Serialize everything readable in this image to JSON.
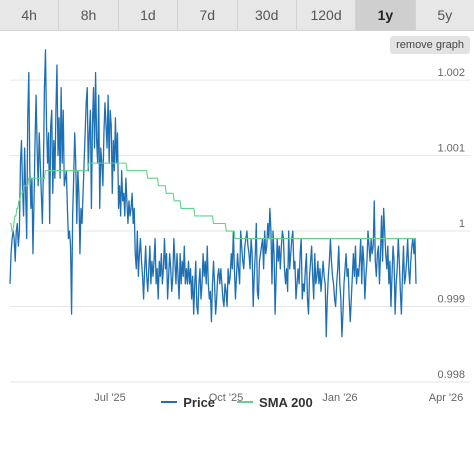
{
  "toolbar": {
    "tabs": [
      "4h",
      "8h",
      "1d",
      "7d",
      "30d",
      "120d",
      "1y",
      "5y"
    ],
    "active_tab": "1y",
    "remove_label": "remove graph"
  },
  "colors": {
    "price": "#1f6fb3",
    "sma": "#5fd38a",
    "grid": "#e6e6e6",
    "axis_text": "#666666"
  },
  "chart_data": {
    "type": "line",
    "xlabel": "",
    "ylabel": "",
    "x_ticks": [
      "Jul '25",
      "Oct '25",
      "Jan '26",
      "Apr '26"
    ],
    "y_ticks": [
      "0.998",
      "0.999",
      "1",
      "1.001",
      "1.002"
    ],
    "ylim": [
      0.998,
      1.0022
    ],
    "legend_position": "bottom",
    "grid": true,
    "series": [
      {
        "name": "Price",
        "values": [
          0.9993,
          0.9997,
          0.9999,
          1.0,
          0.9999,
          0.9996,
          1.0,
          1.0001,
          0.9998,
          1.0,
          1.0009,
          1.0012,
          1.0006,
          1.0002,
          1.0011,
          1.0005,
          0.9999,
          1.0015,
          1.0021,
          1.0008,
          1.0003,
          1.0007,
          0.9997,
          1.0004,
          1.0012,
          1.0018,
          1.0011,
          1.0006,
          1.0013,
          1.0009,
          1.0005,
          1.0001,
          1.0008,
          1.0019,
          1.0024,
          1.0014,
          1.0009,
          1.0013,
          1.0001,
          1.0014,
          1.0016,
          1.0005,
          1.0012,
          1.0007,
          1.0016,
          1.0022,
          1.001,
          1.0015,
          1.0007,
          1.0019,
          1.0009,
          1.0016,
          1.0006,
          1.0007,
          1.0008,
          1.0003,
          0.9999,
          1.0,
          0.9998,
          0.9989,
          1.0002,
          1.0007,
          1.0013,
          1.0009,
          1.0001,
          1.0008,
          1.0005,
          0.9997,
          1.0003,
          1.0001,
          1.0005,
          1.0009,
          1.0013,
          1.0017,
          1.0019,
          1.0008,
          1.0013,
          1.0016,
          1.0003,
          1.0014,
          1.0019,
          1.0011,
          1.0021,
          1.0012,
          1.0009,
          1.0018,
          1.0003,
          1.0011,
          1.0009,
          1.0006,
          1.0013,
          1.0017,
          1.0014,
          1.0011,
          1.0018,
          1.0009,
          1.0016,
          1.0014,
          1.0005,
          1.0012,
          1.0008,
          1.0015,
          1.0009,
          1.0013,
          1.0003,
          1.0006,
          1.0002,
          1.0008,
          1.0004,
          1.0005,
          1.0002,
          1.0007,
          1.0004,
          1.0001,
          1.0004,
          1.0002,
          1.0003,
          1.0005,
          1.0001,
          1.0003,
          0.9997,
          0.9995,
          1.0,
          0.9994,
          0.9997,
          0.9999,
          0.9996,
          0.9994,
          0.9991,
          0.9995,
          0.9998,
          0.9994,
          0.9992,
          0.9995,
          0.9998,
          0.9993,
          0.9996,
          0.9994,
          0.9996,
          0.9999,
          0.9993,
          0.9995,
          0.9991,
          0.9996,
          0.9994,
          0.9997,
          0.9993,
          0.9995,
          0.9999,
          0.9995,
          0.9997,
          0.9991,
          0.9994,
          0.9997,
          0.9995,
          0.9992,
          0.9994,
          0.9999,
          0.9996,
          0.9993,
          0.9997,
          0.9994,
          0.9991,
          0.9997,
          0.9993,
          0.9996,
          0.9994,
          0.9998,
          0.9993,
          0.9995,
          0.9993,
          0.9996,
          0.9993,
          0.9995,
          0.9991,
          0.9994,
          0.9989,
          0.9993,
          0.9996,
          0.999,
          0.9989,
          0.9993,
          0.9995,
          0.9991,
          0.9993,
          0.9997,
          0.9994,
          0.9996,
          0.9993,
          0.9998,
          0.9993,
          0.9991,
          0.9992,
          0.9988,
          0.9993,
          0.9996,
          0.9993,
          0.9989,
          0.9991,
          0.9994,
          0.9995,
          0.9993,
          0.9995,
          0.9993,
          0.9991,
          0.999,
          0.9993,
          0.9992,
          0.999,
          0.9995,
          0.9993,
          0.9994,
          0.9997,
          0.9995,
          1.0,
          0.9995,
          0.9991,
          0.9994,
          0.9997,
          0.9995,
          0.9993,
          1.0,
          0.9998,
          0.9996,
          0.9995,
          0.9998,
          0.9999,
          1.0,
          0.9998,
          0.9997,
          0.9995,
          0.9999,
          0.9997,
          0.999,
          0.9994,
          0.9997,
          1.0001,
          0.9992,
          0.9991,
          0.9996,
          0.9997,
          0.9998,
          0.9999,
          0.9995,
          1.0,
          0.9997,
          0.9998,
          1.0001,
          0.9999,
          1.0003,
          1.0,
          0.9993,
          1.0,
          0.9997,
          0.9989,
          0.9994,
          0.9999,
          0.9996,
          0.9998,
          0.9995,
          0.9998,
          1.0,
          0.9999,
          0.9995,
          0.9993,
          0.9995,
          0.9992,
          1.0,
          0.9995,
          0.9997,
          0.9999,
          1.0,
          0.9995,
          0.9996,
          0.9991,
          0.9993,
          0.9995,
          0.9993,
          0.9997,
          0.9999,
          0.9991,
          0.9993,
          0.9992,
          0.9995,
          0.9997,
          0.9991,
          0.9989,
          0.9994,
          0.9996,
          0.9998,
          0.9994,
          0.9991,
          0.9997,
          0.9993,
          0.9994,
          0.9996,
          0.9993,
          0.9995,
          0.9992,
          0.9994,
          0.9996,
          0.9994,
          0.9993,
          0.9986,
          0.9991,
          0.9994,
          0.9996,
          0.9999,
          0.9996,
          0.9994,
          0.9993,
          0.9991,
          0.999,
          0.9993,
          0.9995,
          0.9998,
          0.9993,
          0.9991,
          0.9986,
          0.9989,
          0.9993,
          0.9995,
          0.9997,
          0.9994,
          0.9995,
          0.9991,
          0.9988,
          0.9991,
          0.9994,
          0.9997,
          0.9994,
          0.9998,
          0.9993,
          0.9995,
          0.9994,
          0.9996,
          0.9999,
          0.9993,
          0.9998,
          0.9996,
          0.9991,
          0.9994,
          0.9996,
          1.0,
          0.9998,
          0.9996,
          0.9999,
          0.9997,
          0.9998,
          1.0004,
          0.9996,
          0.9994,
          0.9997,
          0.9998,
          0.9993,
          0.9997,
          1.0002,
          0.9996,
          1.0003,
          1.0,
          0.9997,
          0.9995,
          0.9998,
          0.9993,
          0.9996,
          0.999,
          0.9994,
          0.9998,
          0.9996,
          0.9989,
          0.9993,
          0.9995,
          0.9999,
          0.9996,
          0.9992,
          0.9989,
          0.9994,
          0.9998,
          0.9993,
          0.9994,
          0.9996,
          0.9999,
          0.9995,
          0.9993,
          0.9996,
          0.9998,
          0.9999,
          0.9997,
          0.9999,
          0.9993
        ]
      },
      {
        "name": "SMA 200",
        "values": [
          1.0001,
          1.0001,
          1.0,
          1.0,
          1.0001,
          1.0002,
          1.0002,
          1.0003,
          1.0003,
          1.0004,
          1.0004,
          1.0005,
          1.0005,
          1.0005,
          1.0006,
          1.0006,
          1.0006,
          1.0006,
          1.0006,
          1.0007,
          1.0007,
          1.0007,
          1.0007,
          1.0007,
          1.0007,
          1.0007,
          1.0007,
          1.0007,
          1.0007,
          1.0007,
          1.0007,
          1.0007,
          1.0007,
          1.0007,
          1.0007,
          1.0007,
          1.0008,
          1.0008,
          1.0008,
          1.0008,
          1.0008,
          1.0008,
          1.0008,
          1.0008,
          1.0008,
          1.0008,
          1.0008,
          1.0008,
          1.0008,
          1.0008,
          1.0008,
          1.0008,
          1.0008,
          1.0008,
          1.0008,
          1.0008,
          1.0008,
          1.0008,
          1.0008,
          1.0008,
          1.0008,
          1.0008,
          1.0008,
          1.0008,
          1.0008,
          1.0008,
          1.0008,
          1.0008,
          1.0008,
          1.0008,
          1.0008,
          1.0008,
          1.0008,
          1.0008,
          1.0008,
          1.0008,
          1.0008,
          1.0008,
          1.0008,
          1.0008,
          1.0009,
          1.0009,
          1.0009,
          1.0009,
          1.0009,
          1.0009,
          1.0009,
          1.0009,
          1.0009,
          1.0009,
          1.0009,
          1.0009,
          1.0009,
          1.0009,
          1.0009,
          1.0009,
          1.0009,
          1.0009,
          1.0009,
          1.0009,
          1.0009,
          1.0009,
          1.0009,
          1.0009,
          1.0009,
          1.0009,
          1.0009,
          1.0009,
          1.0009,
          1.0009,
          1.0009,
          1.0009,
          1.0009,
          1.0009,
          1.0009,
          1.0009,
          1.0009,
          1.0009,
          1.0009,
          1.0008,
          1.0008,
          1.0008,
          1.0008,
          1.0008,
          1.0008,
          1.0008,
          1.0008,
          1.0008,
          1.0008,
          1.0008,
          1.0008,
          1.0008,
          1.0008,
          1.0008,
          1.0008,
          1.0008,
          1.0008,
          1.0008,
          1.0008,
          1.0008,
          1.0007,
          1.0007,
          1.0007,
          1.0007,
          1.0007,
          1.0007,
          1.0007,
          1.0007,
          1.0007,
          1.0007,
          1.0007,
          1.0006,
          1.0006,
          1.0006,
          1.0006,
          1.0006,
          1.0006,
          1.0006,
          1.0006,
          1.0005,
          1.0005,
          1.0005,
          1.0005,
          1.0005,
          1.0005,
          1.0005,
          1.0005,
          1.0004,
          1.0004,
          1.0004,
          1.0004,
          1.0004,
          1.0004,
          1.0004,
          1.0003,
          1.0003,
          1.0003,
          1.0003,
          1.0003,
          1.0003,
          1.0003,
          1.0003,
          1.0003,
          1.0003,
          1.0003,
          1.0003,
          1.0003,
          1.0003,
          1.0002,
          1.0002,
          1.0002,
          1.0002,
          1.0002,
          1.0002,
          1.0002,
          1.0002,
          1.0002,
          1.0002,
          1.0002,
          1.0002,
          1.0002,
          1.0002,
          1.0002,
          1.0002,
          1.0002,
          1.0002,
          1.0002,
          1.0001,
          1.0001,
          1.0001,
          1.0001,
          1.0001,
          1.0001,
          1.0001,
          1.0001,
          1.0001,
          1.0001,
          1.0001,
          1.0001,
          1.0001,
          1.0,
          1.0,
          1.0,
          1.0,
          1.0,
          1.0,
          1.0,
          1.0,
          1.0,
          0.9999,
          0.9999,
          0.9999,
          0.9999,
          0.9999,
          0.9999,
          0.9999,
          0.9999,
          0.9999,
          0.9999,
          0.9999,
          0.9999,
          0.9999,
          0.9999,
          0.9999,
          0.9999,
          0.9999,
          0.9999,
          0.9999,
          0.9999,
          0.9999,
          0.9999,
          0.9999,
          0.9999,
          0.9999,
          0.9999,
          0.9999,
          0.9999,
          0.9999,
          0.9999,
          0.9999,
          0.9999,
          0.9999,
          0.9999,
          0.9999,
          0.9999,
          0.9999,
          0.9999,
          0.9999,
          0.9999,
          0.9999,
          0.9999,
          0.9999,
          0.9999,
          0.9999,
          0.9999,
          0.9999,
          0.9999,
          0.9999,
          0.9999,
          0.9999,
          0.9999,
          0.9999,
          0.9999,
          0.9999,
          0.9999,
          0.9999,
          0.9999,
          0.9999,
          0.9999,
          0.9999,
          0.9999,
          0.9999,
          0.9999,
          0.9999,
          0.9999,
          0.9999,
          0.9999,
          0.9999,
          0.9999,
          0.9999,
          0.9999,
          0.9999,
          0.9999,
          0.9999,
          0.9999,
          0.9999,
          0.9999,
          0.9999,
          0.9999,
          0.9999,
          0.9999,
          0.9999,
          0.9999,
          0.9999,
          0.9999,
          0.9999,
          0.9999,
          0.9999,
          0.9999,
          0.9999,
          0.9999,
          0.9999,
          0.9999,
          0.9999,
          0.9999,
          0.9999,
          0.9999,
          0.9999,
          0.9999,
          0.9999,
          0.9999,
          0.9999,
          0.9999,
          0.9999,
          0.9999,
          0.9999,
          0.9999,
          0.9999,
          0.9999,
          0.9999,
          0.9999,
          0.9999,
          0.9999,
          0.9999,
          0.9999,
          0.9999,
          0.9999,
          0.9999,
          0.9999,
          0.9999,
          0.9999,
          0.9999,
          0.9999,
          0.9999,
          0.9999,
          0.9999,
          0.9999,
          0.9999,
          0.9999,
          0.9999,
          0.9999,
          0.9999,
          0.9999,
          0.9999,
          0.9999,
          0.9999,
          0.9999,
          0.9999,
          0.9999,
          0.9999,
          0.9999,
          0.9999,
          0.9999,
          0.9999,
          0.9999,
          0.9999,
          0.9999,
          0.9999,
          0.9999,
          0.9999,
          0.9999,
          0.9999,
          0.9999,
          0.9999,
          0.9999,
          0.9999,
          0.9999,
          0.9999,
          0.9999,
          0.9999,
          0.9999,
          0.9999,
          0.9999,
          0.9999,
          0.9999,
          0.9999,
          0.9999,
          0.9999,
          0.9999,
          0.9999,
          0.9999,
          0.9999,
          0.9999,
          0.9999,
          0.9999,
          0.9999,
          0.9999,
          0.9999,
          0.9999,
          0.9999,
          0.9999,
          0.9999,
          0.9999,
          0.9999
        ]
      }
    ]
  }
}
